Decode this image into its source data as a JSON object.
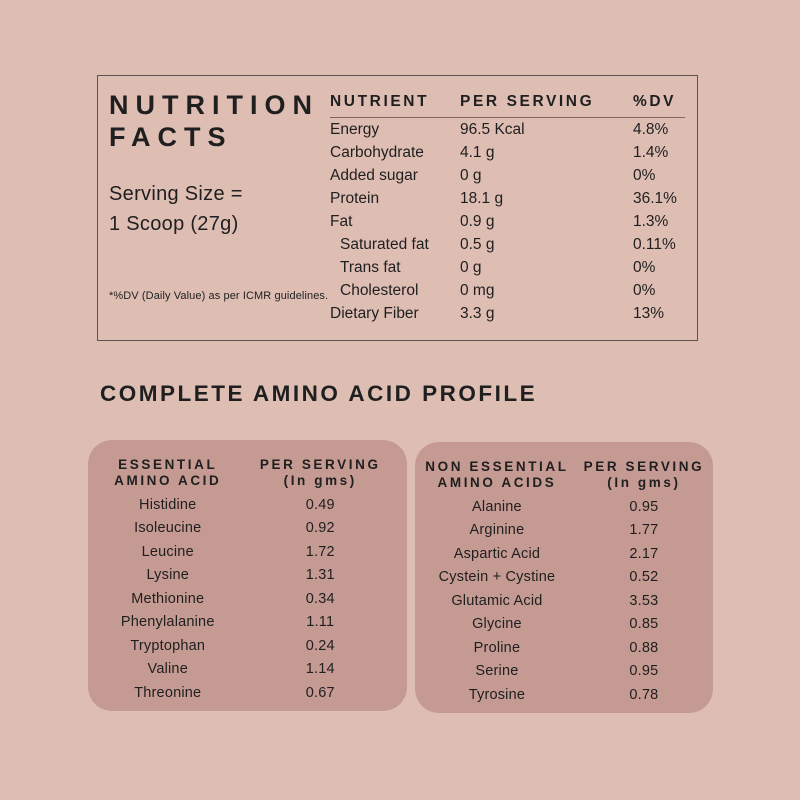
{
  "theme": {
    "bg": "#debdb3",
    "card": "#c59a92",
    "ink": "#1f1f1f",
    "line": "#5b5451"
  },
  "nutrition_facts": {
    "title_line1": "NUTRITION",
    "title_line2": "FACTS",
    "serving_line1": "Serving Size =",
    "serving_line2": "1 Scoop (27g)",
    "footnote": "*%DV (Daily Value) as per ICMR guidelines.",
    "columns": {
      "nutrient": "NUTRIENT",
      "per_serving": "PER SERVING",
      "dv": "%DV"
    },
    "rows": [
      {
        "name": "Energy",
        "per_serving": "96.5 Kcal",
        "dv": "4.8%"
      },
      {
        "name": "Carbohydrate",
        "per_serving": "4.1 g",
        "dv": "1.4%"
      },
      {
        "name": "Added sugar",
        "per_serving": "0 g",
        "dv": "0%"
      },
      {
        "name": "Protein",
        "per_serving": "18.1 g",
        "dv": "36.1%"
      },
      {
        "name": "Fat",
        "per_serving": "0.9 g",
        "dv": "1.3%"
      },
      {
        "name": "Saturated fat",
        "per_serving": "0.5 g",
        "dv": "0.11%"
      },
      {
        "name": "Trans fat",
        "per_serving": "0 g",
        "dv": "0%"
      },
      {
        "name": "Cholesterol",
        "per_serving": "0 mg",
        "dv": "0%"
      },
      {
        "name": "Dietary Fiber",
        "per_serving": "3.3 g",
        "dv": "13%"
      }
    ]
  },
  "amino_section": {
    "heading": "COMPLETE AMINO ACID PROFILE",
    "essential": {
      "col1_line1": "ESSENTIAL",
      "col1_line2": "AMINO ACID",
      "col2_line1": "PER SERVING",
      "col2_line2": "(In gms)",
      "rows": [
        {
          "name": "Histidine",
          "value": "0.49"
        },
        {
          "name": "Isoleucine",
          "value": "0.92"
        },
        {
          "name": "Leucine",
          "value": "1.72"
        },
        {
          "name": "Lysine",
          "value": "1.31"
        },
        {
          "name": "Methionine",
          "value": "0.34"
        },
        {
          "name": "Phenylalanine",
          "value": "1.11"
        },
        {
          "name": "Tryptophan",
          "value": "0.24"
        },
        {
          "name": "Valine",
          "value": "1.14"
        },
        {
          "name": "Threonine",
          "value": "0.67"
        }
      ]
    },
    "non_essential": {
      "col1_line1": "NON ESSENTIAL",
      "col1_line2": "AMINO ACIDS",
      "col2_line1": "PER SERVING",
      "col2_line2": "(In gms)",
      "rows": [
        {
          "name": "Alanine",
          "value": "0.95"
        },
        {
          "name": "Arginine",
          "value": "1.77"
        },
        {
          "name": "Aspartic Acid",
          "value": "2.17"
        },
        {
          "name": "Cystein + Cystine",
          "value": "0.52"
        },
        {
          "name": "Glutamic Acid",
          "value": "3.53"
        },
        {
          "name": "Glycine",
          "value": "0.85"
        },
        {
          "name": "Proline",
          "value": "0.88"
        },
        {
          "name": "Serine",
          "value": "0.95"
        },
        {
          "name": "Tyrosine",
          "value": "0.78"
        }
      ]
    }
  }
}
